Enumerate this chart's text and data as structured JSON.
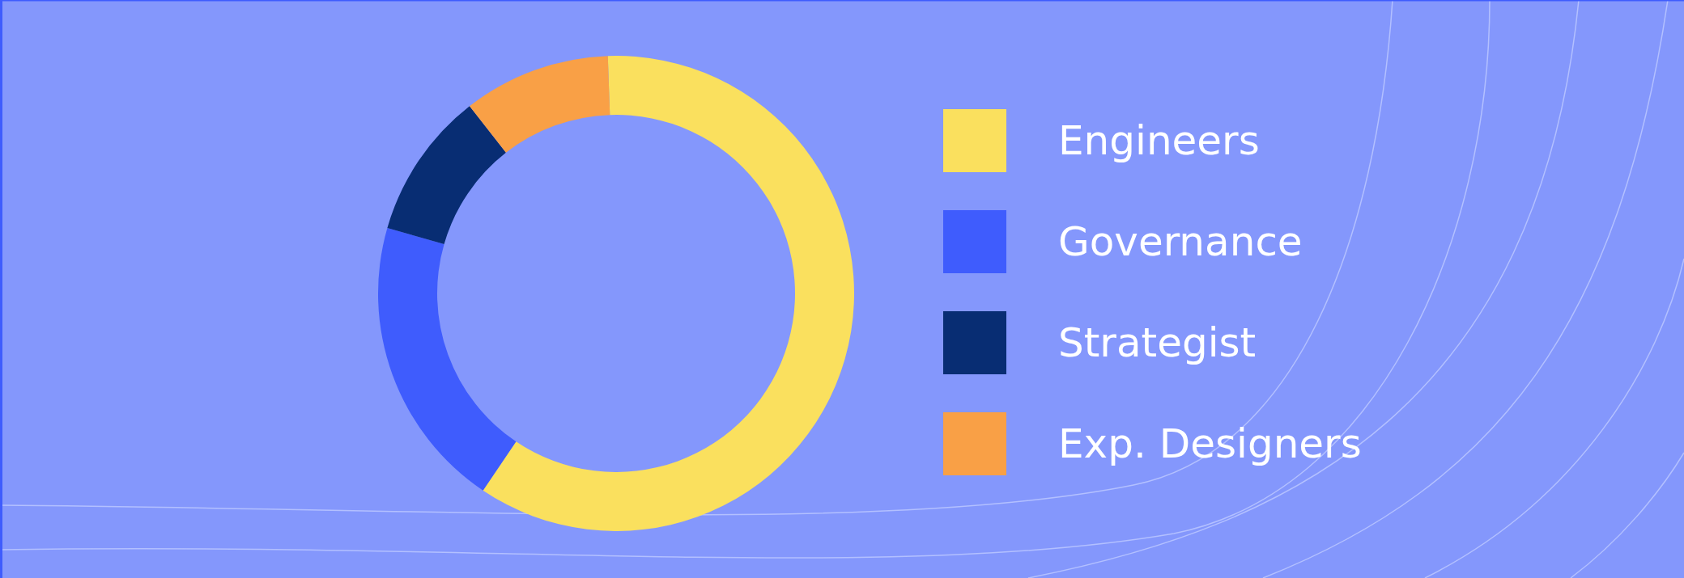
{
  "chart_data": {
    "type": "donut",
    "categories": [
      "Engineers",
      "Governance",
      "Strategist",
      "Exp. Designers"
    ],
    "values": [
      60,
      20,
      10,
      10
    ],
    "colors": [
      "#fae05e",
      "#3f5cfd",
      "#082d73",
      "#f9a046"
    ],
    "legend": "right"
  }
}
